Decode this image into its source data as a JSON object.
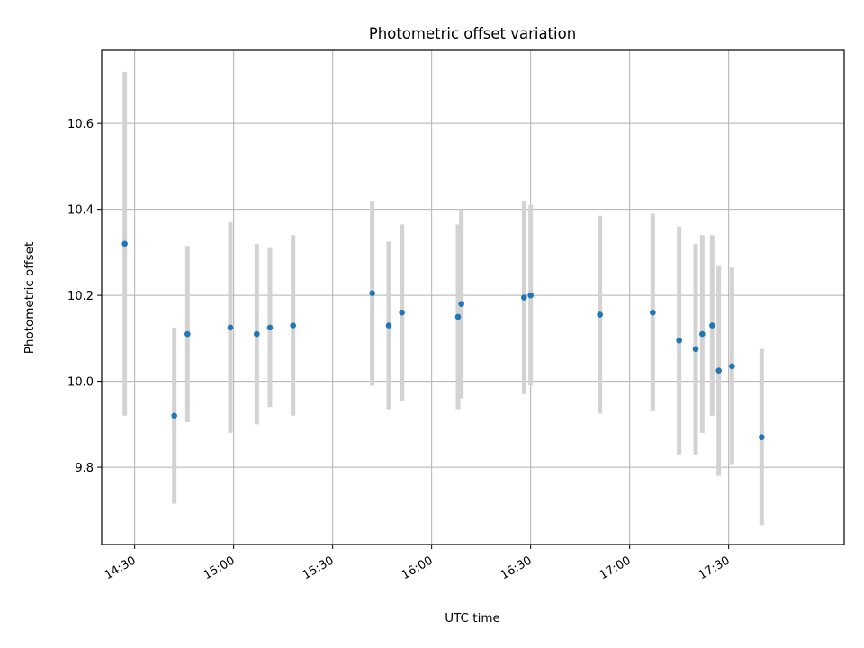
{
  "chart_data": {
    "type": "scatter",
    "title": "Photometric offset variation",
    "xlabel": "UTC time",
    "ylabel": "Photometric offset",
    "x_axis": {
      "type": "time",
      "range": [
        "14:20",
        "18:05"
      ],
      "ticks": [
        "14:30",
        "15:00",
        "15:30",
        "16:00",
        "16:30",
        "17:00",
        "17:30"
      ]
    },
    "y_axis": {
      "range": [
        9.62,
        10.77
      ],
      "ticks": [
        "9.8",
        "10.0",
        "10.2",
        "10.4",
        "10.6"
      ]
    },
    "grid": true,
    "point_color": "#1f77b4",
    "errorbar_color": "#d3d3d3",
    "points": [
      {
        "x": "14:27",
        "y": 10.32,
        "err": 0.4
      },
      {
        "x": "14:42",
        "y": 9.92,
        "err": 0.205
      },
      {
        "x": "14:46",
        "y": 10.11,
        "err": 0.205
      },
      {
        "x": "14:59",
        "y": 10.125,
        "err": 0.245
      },
      {
        "x": "15:07",
        "y": 10.11,
        "err": 0.21
      },
      {
        "x": "15:11",
        "y": 10.125,
        "err": 0.185
      },
      {
        "x": "15:18",
        "y": 10.13,
        "err": 0.21
      },
      {
        "x": "15:42",
        "y": 10.205,
        "err": 0.215
      },
      {
        "x": "15:47",
        "y": 10.13,
        "err": 0.195
      },
      {
        "x": "15:51",
        "y": 10.16,
        "err": 0.205
      },
      {
        "x": "16:08",
        "y": 10.15,
        "err": 0.215
      },
      {
        "x": "16:09",
        "y": 10.18,
        "err": 0.22
      },
      {
        "x": "16:28",
        "y": 10.195,
        "err": 0.225
      },
      {
        "x": "16:30",
        "y": 10.2,
        "err": 0.21
      },
      {
        "x": "16:51",
        "y": 10.155,
        "err": 0.23
      },
      {
        "x": "17:07",
        "y": 10.16,
        "err": 0.23
      },
      {
        "x": "17:15",
        "y": 10.095,
        "err": 0.265
      },
      {
        "x": "17:20",
        "y": 10.075,
        "err": 0.245
      },
      {
        "x": "17:22",
        "y": 10.11,
        "err": 0.23
      },
      {
        "x": "17:25",
        "y": 10.13,
        "err": 0.21
      },
      {
        "x": "17:27",
        "y": 10.025,
        "err": 0.245
      },
      {
        "x": "17:31",
        "y": 10.035,
        "err": 0.23
      },
      {
        "x": "17:40",
        "y": 9.87,
        "err": 0.205
      }
    ]
  }
}
